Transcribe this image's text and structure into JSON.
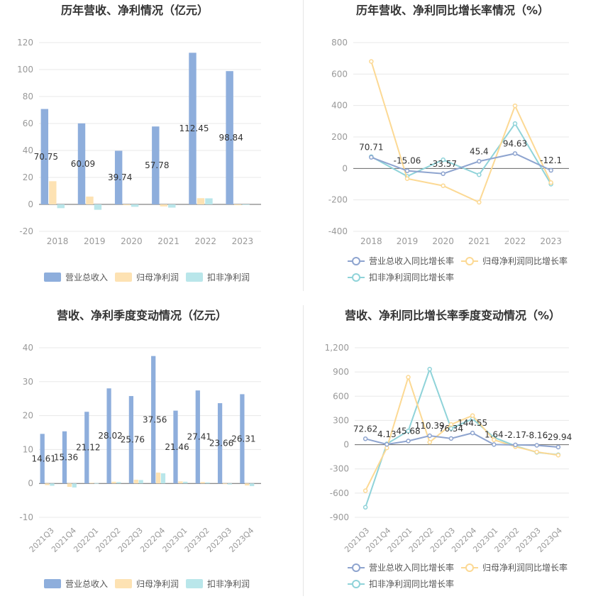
{
  "colors": {
    "revenue": "#8eaedc",
    "net_profit": "#fde2b3",
    "deducted_profit": "#b9e6ea",
    "revenue_line": "#8ea4cf",
    "net_profit_line": "#fcd994",
    "deducted_line": "#8fd3d9",
    "grid": "#e8e8e8",
    "axis": "#666666",
    "tick": "#999999",
    "title": "#333333"
  },
  "chart_data": [
    {
      "id": "annual-amount",
      "type": "bar",
      "title": "历年营收、净利情况（亿元）",
      "categories": [
        "2018",
        "2019",
        "2020",
        "2021",
        "2022",
        "2023"
      ],
      "ylim": [
        -20,
        120
      ],
      "yticks": [
        "120",
        "100",
        "80",
        "60",
        "40",
        "20",
        "0",
        "-20"
      ],
      "ytick_values": [
        120,
        100,
        80,
        60,
        40,
        20,
        0,
        -20
      ],
      "legend": [
        "营业总收入",
        "归母净利润",
        "扣非净利润"
      ],
      "series": [
        {
          "name": "营业总收入",
          "values": [
            70.75,
            60.09,
            39.74,
            57.78,
            112.45,
            98.84
          ]
        },
        {
          "name": "归母净利润",
          "values": [
            17.2,
            5.8,
            -0.6,
            -1.5,
            4.6,
            -0.6
          ]
        },
        {
          "name": "扣非净利润",
          "values": [
            -2.8,
            -4.0,
            -1.8,
            -2.4,
            4.5,
            -0.4
          ]
        }
      ],
      "data_labels": [
        "70.75",
        "60.09",
        "39.74",
        "57.78",
        "112.45",
        "98.84"
      ]
    },
    {
      "id": "annual-growth",
      "type": "line",
      "title": "历年营收、净利同比增长率情况（%）",
      "categories": [
        "2018",
        "2019",
        "2020",
        "2021",
        "2022",
        "2023"
      ],
      "ylim": [
        -400,
        800
      ],
      "yticks": [
        "800",
        "600",
        "400",
        "200",
        "0",
        "-200",
        "-400"
      ],
      "ytick_values": [
        800,
        600,
        400,
        200,
        0,
        -200,
        -400
      ],
      "legend": [
        "营业总收入同比增长率",
        "归母净利润同比增长率",
        "扣非净利润同比增长率"
      ],
      "series": [
        {
          "name": "营业总收入同比增长率",
          "values": [
            70.71,
            -15.06,
            -33.57,
            45.4,
            94.63,
            -12.1
          ]
        },
        {
          "name": "归母净利润同比增长率",
          "values": [
            680,
            -65,
            -110,
            -215,
            398,
            -90
          ]
        },
        {
          "name": "扣非净利润同比增长率",
          "values": [
            75,
            -50,
            55,
            -40,
            285,
            -100
          ]
        }
      ],
      "data_labels": [
        "70.71",
        "-15.06",
        "-33.57",
        "45.4",
        "94.63",
        "-12.1"
      ]
    },
    {
      "id": "quarterly-amount",
      "type": "bar",
      "title": "营收、净利季度变动情况（亿元）",
      "categories": [
        "2021Q3",
        "2021Q4",
        "2022Q1",
        "2022Q2",
        "2022Q3",
        "2022Q4",
        "2023Q1",
        "2023Q2",
        "2023Q3",
        "2023Q4"
      ],
      "ylim": [
        -10,
        40
      ],
      "yticks": [
        "40",
        "30",
        "20",
        "10",
        "0",
        "-10"
      ],
      "ytick_values": [
        40,
        30,
        20,
        10,
        0,
        -10
      ],
      "legend": [
        "营业总收入",
        "归母净利润",
        "扣非净利润"
      ],
      "series": [
        {
          "name": "营业总收入",
          "values": [
            14.61,
            15.36,
            21.12,
            28.02,
            25.76,
            37.56,
            21.46,
            27.41,
            23.66,
            26.31
          ]
        },
        {
          "name": "归母净利润",
          "values": [
            -0.5,
            -1.0,
            0.2,
            0.5,
            1.1,
            3.2,
            0.6,
            0.4,
            -0.2,
            -0.6
          ]
        },
        {
          "name": "扣非净利润",
          "values": [
            -0.7,
            -1.2,
            0.1,
            0.4,
            1.0,
            3.0,
            0.5,
            0.3,
            -0.3,
            -0.8
          ]
        }
      ],
      "data_labels": [
        "14.61",
        "15.36",
        "21.12",
        "28.02",
        "25.76",
        "37.56",
        "21.46",
        "27.41",
        "23.66",
        "26.31"
      ]
    },
    {
      "id": "quarterly-growth",
      "type": "line",
      "title": "营收、净利同比增长率季度变动情况（%）",
      "categories": [
        "2021Q3",
        "2021Q4",
        "2022Q1",
        "2022Q2",
        "2022Q3",
        "2022Q4",
        "2023Q1",
        "2023Q2",
        "2023Q3",
        "2023Q4"
      ],
      "ylim": [
        -900,
        1200
      ],
      "yticks": [
        "1,200",
        "900",
        "600",
        "300",
        "0",
        "-300",
        "-600",
        "-900"
      ],
      "ytick_values": [
        1200,
        900,
        600,
        300,
        0,
        -300,
        -600,
        -900
      ],
      "legend": [
        "营业总收入同比增长率",
        "归母净利润同比增长率",
        "扣非净利润同比增长率"
      ],
      "series": [
        {
          "name": "营业总收入同比增长率",
          "values": [
            72.62,
            4.13,
            45.68,
            110.39,
            76.34,
            144.55,
            1.64,
            -2.17,
            -8.16,
            -29.94
          ]
        },
        {
          "name": "归母净利润同比增长率",
          "values": [
            -570,
            -40,
            835,
            30,
            250,
            360,
            60,
            -25,
            -90,
            -130
          ]
        },
        {
          "name": "扣非净利润同比增长率",
          "values": [
            -775,
            10,
            170,
            935,
            200,
            320,
            90,
            -15,
            -95,
            -125
          ]
        }
      ],
      "data_labels": [
        "72.62",
        "4.13",
        "45.68",
        "110.39",
        "76.34",
        "144.55",
        "1.64",
        "-2.17",
        "-8.16",
        "-29.94"
      ]
    }
  ]
}
